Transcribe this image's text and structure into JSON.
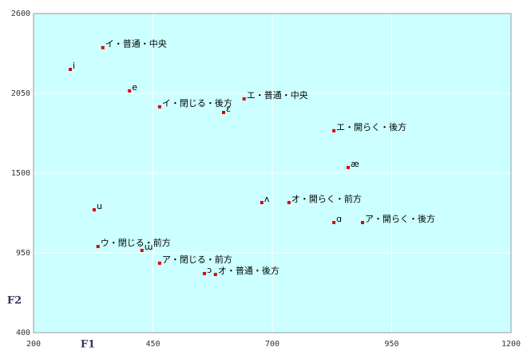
{
  "chart_data": {
    "type": "scatter",
    "color": "#e00000",
    "grid": true,
    "background": "#ccffff",
    "x_label": "F1",
    "y_label": "F2",
    "xlim": [
      200,
      1200
    ],
    "xticks": [
      200,
      450,
      700,
      950,
      1200
    ],
    "ylim": [
      400,
      2600
    ],
    "yticks": [
      400,
      950,
      1500,
      2050,
      2600
    ],
    "labels": [
      "イ・普通・中央",
      "i",
      "e",
      "イ・閉じる・後方",
      "ɛ",
      "エ・普通・中央",
      "エ・開らく・後方",
      "æ",
      "ʌ",
      "オ・開らく・前方",
      "ɑ",
      "ア・開らく・後方",
      "u",
      "ウ・閉じる・前方",
      "ɯ",
      "ア・閉じる・前方",
      "ɔ",
      "オ・普通・後方"
    ],
    "x": [
      345,
      277,
      401,
      464,
      598,
      641,
      829,
      859,
      678,
      735,
      829,
      889,
      327,
      335,
      427,
      464,
      558,
      581
    ],
    "values": [
      2365,
      2215,
      2067,
      1957,
      1918,
      2012,
      1792,
      1539,
      1297,
      1297,
      1159,
      1159,
      1247,
      994,
      967,
      879,
      807,
      801
    ]
  }
}
